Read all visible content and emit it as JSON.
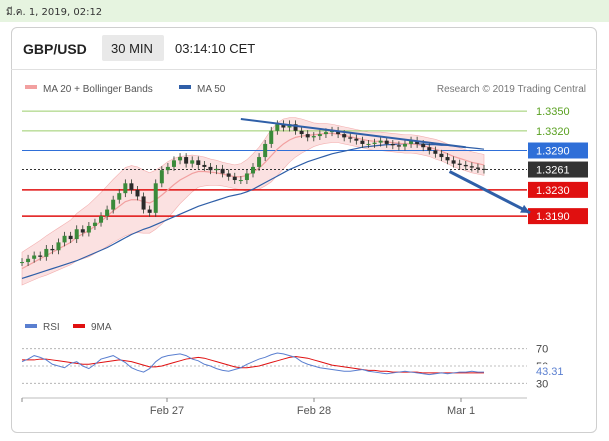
{
  "timestamp": "มี.ค. 1, 2019, 02:12",
  "header": {
    "pair": "GBP/USD",
    "timeframe": "30 MIN",
    "time": "03:14:10 CET"
  },
  "legend": {
    "ma20": "MA 20 + Bollinger Bands",
    "ma50": "MA 50",
    "credit": "Research © 2019 Trading Central"
  },
  "rsi_legend": {
    "rsi": "RSI",
    "ma": "9MA"
  },
  "colors": {
    "resistance": "#9acd6a",
    "pivot": "#2f6fd8",
    "support": "#e01010",
    "current": "#333333",
    "trend": "#2f5fa8",
    "band": "#f8c9c9",
    "ma20": "#f2a0a0"
  },
  "chart_data": [
    {
      "type": "line",
      "title": "GBP/USD 30 MIN",
      "x_ticks": [
        "Feb 27",
        "Feb 28",
        "Mar 1"
      ],
      "ylim": [
        1.305,
        1.337
      ],
      "levels": [
        {
          "label": "1.3350",
          "value": 1.335,
          "kind": "resistance"
        },
        {
          "label": "1.3320",
          "value": 1.332,
          "kind": "resistance"
        },
        {
          "label": "1.3290",
          "value": 1.329,
          "kind": "pivot"
        },
        {
          "label": "1.3261",
          "value": 1.3261,
          "kind": "current"
        },
        {
          "label": "1.3230",
          "value": 1.323,
          "kind": "support"
        },
        {
          "label": "1.3190",
          "value": 1.319,
          "kind": "support"
        }
      ],
      "price": [
        1.312,
        1.3125,
        1.313,
        1.3128,
        1.314,
        1.3138,
        1.315,
        1.316,
        1.3155,
        1.317,
        1.3165,
        1.3175,
        1.318,
        1.319,
        1.32,
        1.3215,
        1.3225,
        1.324,
        1.323,
        1.322,
        1.32,
        1.3195,
        1.324,
        1.326,
        1.3265,
        1.3275,
        1.328,
        1.327,
        1.3275,
        1.3268,
        1.3265,
        1.326,
        1.3262,
        1.3255,
        1.325,
        1.3245,
        1.3245,
        1.3255,
        1.3265,
        1.328,
        1.33,
        1.332,
        1.333,
        1.3325,
        1.333,
        1.332,
        1.3315,
        1.331,
        1.3312,
        1.3315,
        1.3318,
        1.332,
        1.3315,
        1.331,
        1.3308,
        1.3305,
        1.33,
        1.33,
        1.3302,
        1.3305,
        1.33,
        1.3298,
        1.3296,
        1.33,
        1.3305,
        1.33,
        1.3295,
        1.329,
        1.3285,
        1.328,
        1.3275,
        1.327,
        1.3268,
        1.3266,
        1.3264,
        1.3262,
        1.3261
      ],
      "ma20": [
        1.311,
        1.3115,
        1.312,
        1.3125,
        1.313,
        1.3135,
        1.314,
        1.3145,
        1.315,
        1.3158,
        1.3163,
        1.3168,
        1.3175,
        1.3182,
        1.319,
        1.3198,
        1.3205,
        1.3212,
        1.3215,
        1.3215,
        1.3212,
        1.321,
        1.3215,
        1.3222,
        1.323,
        1.3238,
        1.3245,
        1.325,
        1.3255,
        1.3258,
        1.3258,
        1.3257,
        1.3256,
        1.3254,
        1.3252,
        1.325,
        1.325,
        1.3252,
        1.3257,
        1.3263,
        1.3272,
        1.3282,
        1.3292,
        1.33,
        1.3306,
        1.331,
        1.3312,
        1.3313,
        1.3314,
        1.3315,
        1.3316,
        1.3316,
        1.3315,
        1.3313,
        1.3311,
        1.3309,
        1.3307,
        1.3305,
        1.3304,
        1.3304,
        1.3303,
        1.3302,
        1.3301,
        1.33,
        1.33,
        1.3299,
        1.3297,
        1.3295,
        1.3292,
        1.3289,
        1.3285,
        1.3281,
        1.3278,
        1.3275,
        1.3272,
        1.327,
        1.3268
      ],
      "band_width": [
        0.0025,
        0.0026,
        0.0027,
        0.0028,
        0.003,
        0.0031,
        0.0032,
        0.0033,
        0.0034,
        0.0036,
        0.0038,
        0.004,
        0.0042,
        0.0044,
        0.0046,
        0.0048,
        0.005,
        0.0052,
        0.0052,
        0.005,
        0.0048,
        0.0046,
        0.0045,
        0.0044,
        0.0043,
        0.004,
        0.0036,
        0.0032,
        0.0028,
        0.0024,
        0.0022,
        0.002,
        0.0019,
        0.0018,
        0.0018,
        0.0018,
        0.002,
        0.0024,
        0.0028,
        0.0032,
        0.0036,
        0.004,
        0.004,
        0.0038,
        0.0034,
        0.003,
        0.0026,
        0.0022,
        0.0018,
        0.0016,
        0.0015,
        0.0014,
        0.0013,
        0.0013,
        0.0013,
        0.0013,
        0.0013,
        0.0013,
        0.0014,
        0.0014,
        0.0014,
        0.0014,
        0.0014,
        0.0014,
        0.0014,
        0.0014,
        0.0014,
        0.0014,
        0.0015,
        0.0015,
        0.0015,
        0.0016,
        0.0016,
        0.0016,
        0.0016,
        0.0016,
        0.0016
      ],
      "ma50": [
        1.3095,
        1.3098,
        1.3101,
        1.3104,
        1.3107,
        1.311,
        1.3113,
        1.3116,
        1.3119,
        1.3122,
        1.3126,
        1.313,
        1.3134,
        1.3138,
        1.3142,
        1.3147,
        1.3152,
        1.3157,
        1.3162,
        1.3166,
        1.317,
        1.3173,
        1.3177,
        1.3181,
        1.3185,
        1.3189,
        1.3193,
        1.3197,
        1.3201,
        1.3205,
        1.3208,
        1.3211,
        1.3214,
        1.3217,
        1.322,
        1.3222,
        1.3224,
        1.3227,
        1.3231,
        1.3236,
        1.3241,
        1.3246,
        1.3251,
        1.3256,
        1.3261,
        1.3265,
        1.3269,
        1.3273,
        1.3276,
        1.3279,
        1.3282,
        1.3285,
        1.3287,
        1.3289,
        1.3291,
        1.3293,
        1.3295,
        1.3296,
        1.3297,
        1.3298,
        1.3299,
        1.3299,
        1.33,
        1.33,
        1.33,
        1.33,
        1.33,
        1.3299,
        1.3299,
        1.3298,
        1.3298,
        1.3297,
        1.3296,
        1.3295,
        1.3294,
        1.3293,
        1.3292
      ],
      "trendline": {
        "start": {
          "index": 36,
          "value": 1.3338
        },
        "end": {
          "index": 73,
          "value": 1.3295
        }
      },
      "forecast_arrow": {
        "from": {
          "index": 70,
          "value": 1.3258
        },
        "to": {
          "index": 77,
          "value": 1.3195
        }
      }
    },
    {
      "type": "line",
      "title": "RSI",
      "levels": [
        {
          "label": "70",
          "value": 70
        },
        {
          "label": "50",
          "value": 50
        },
        {
          "label": "30",
          "value": 30
        }
      ],
      "current_label": "43.31",
      "ylim": [
        20,
        80
      ],
      "rsi": [
        55,
        58,
        62,
        60,
        57,
        52,
        50,
        48,
        53,
        55,
        50,
        47,
        52,
        58,
        60,
        62,
        58,
        54,
        48,
        45,
        43,
        47,
        55,
        60,
        62,
        63,
        64,
        62,
        58,
        56,
        52,
        50,
        47,
        45,
        44,
        46,
        48,
        52,
        55,
        58,
        60,
        63,
        65,
        64,
        62,
        60,
        55,
        52,
        50,
        48,
        47,
        46,
        45,
        44,
        44,
        45,
        46,
        44,
        43,
        42,
        41,
        42,
        43,
        44,
        43,
        42,
        41,
        40,
        41,
        42,
        41,
        42,
        43,
        43,
        44,
        43,
        43
      ],
      "rsi_ma": [
        57,
        57,
        57,
        58,
        58,
        57,
        56,
        55,
        54,
        53,
        52,
        52,
        53,
        54,
        55,
        56,
        57,
        56,
        55,
        53,
        51,
        49,
        49,
        50,
        52,
        54,
        56,
        58,
        59,
        60,
        59,
        57,
        55,
        53,
        51,
        49,
        48,
        48,
        49,
        50,
        52,
        54,
        56,
        58,
        60,
        61,
        60,
        59,
        57,
        55,
        53,
        51,
        50,
        49,
        48,
        47,
        46,
        45,
        45,
        44,
        44,
        43,
        43,
        43,
        43,
        43,
        42,
        42,
        42,
        42,
        42,
        42,
        42,
        42,
        42,
        42,
        42
      ]
    }
  ]
}
